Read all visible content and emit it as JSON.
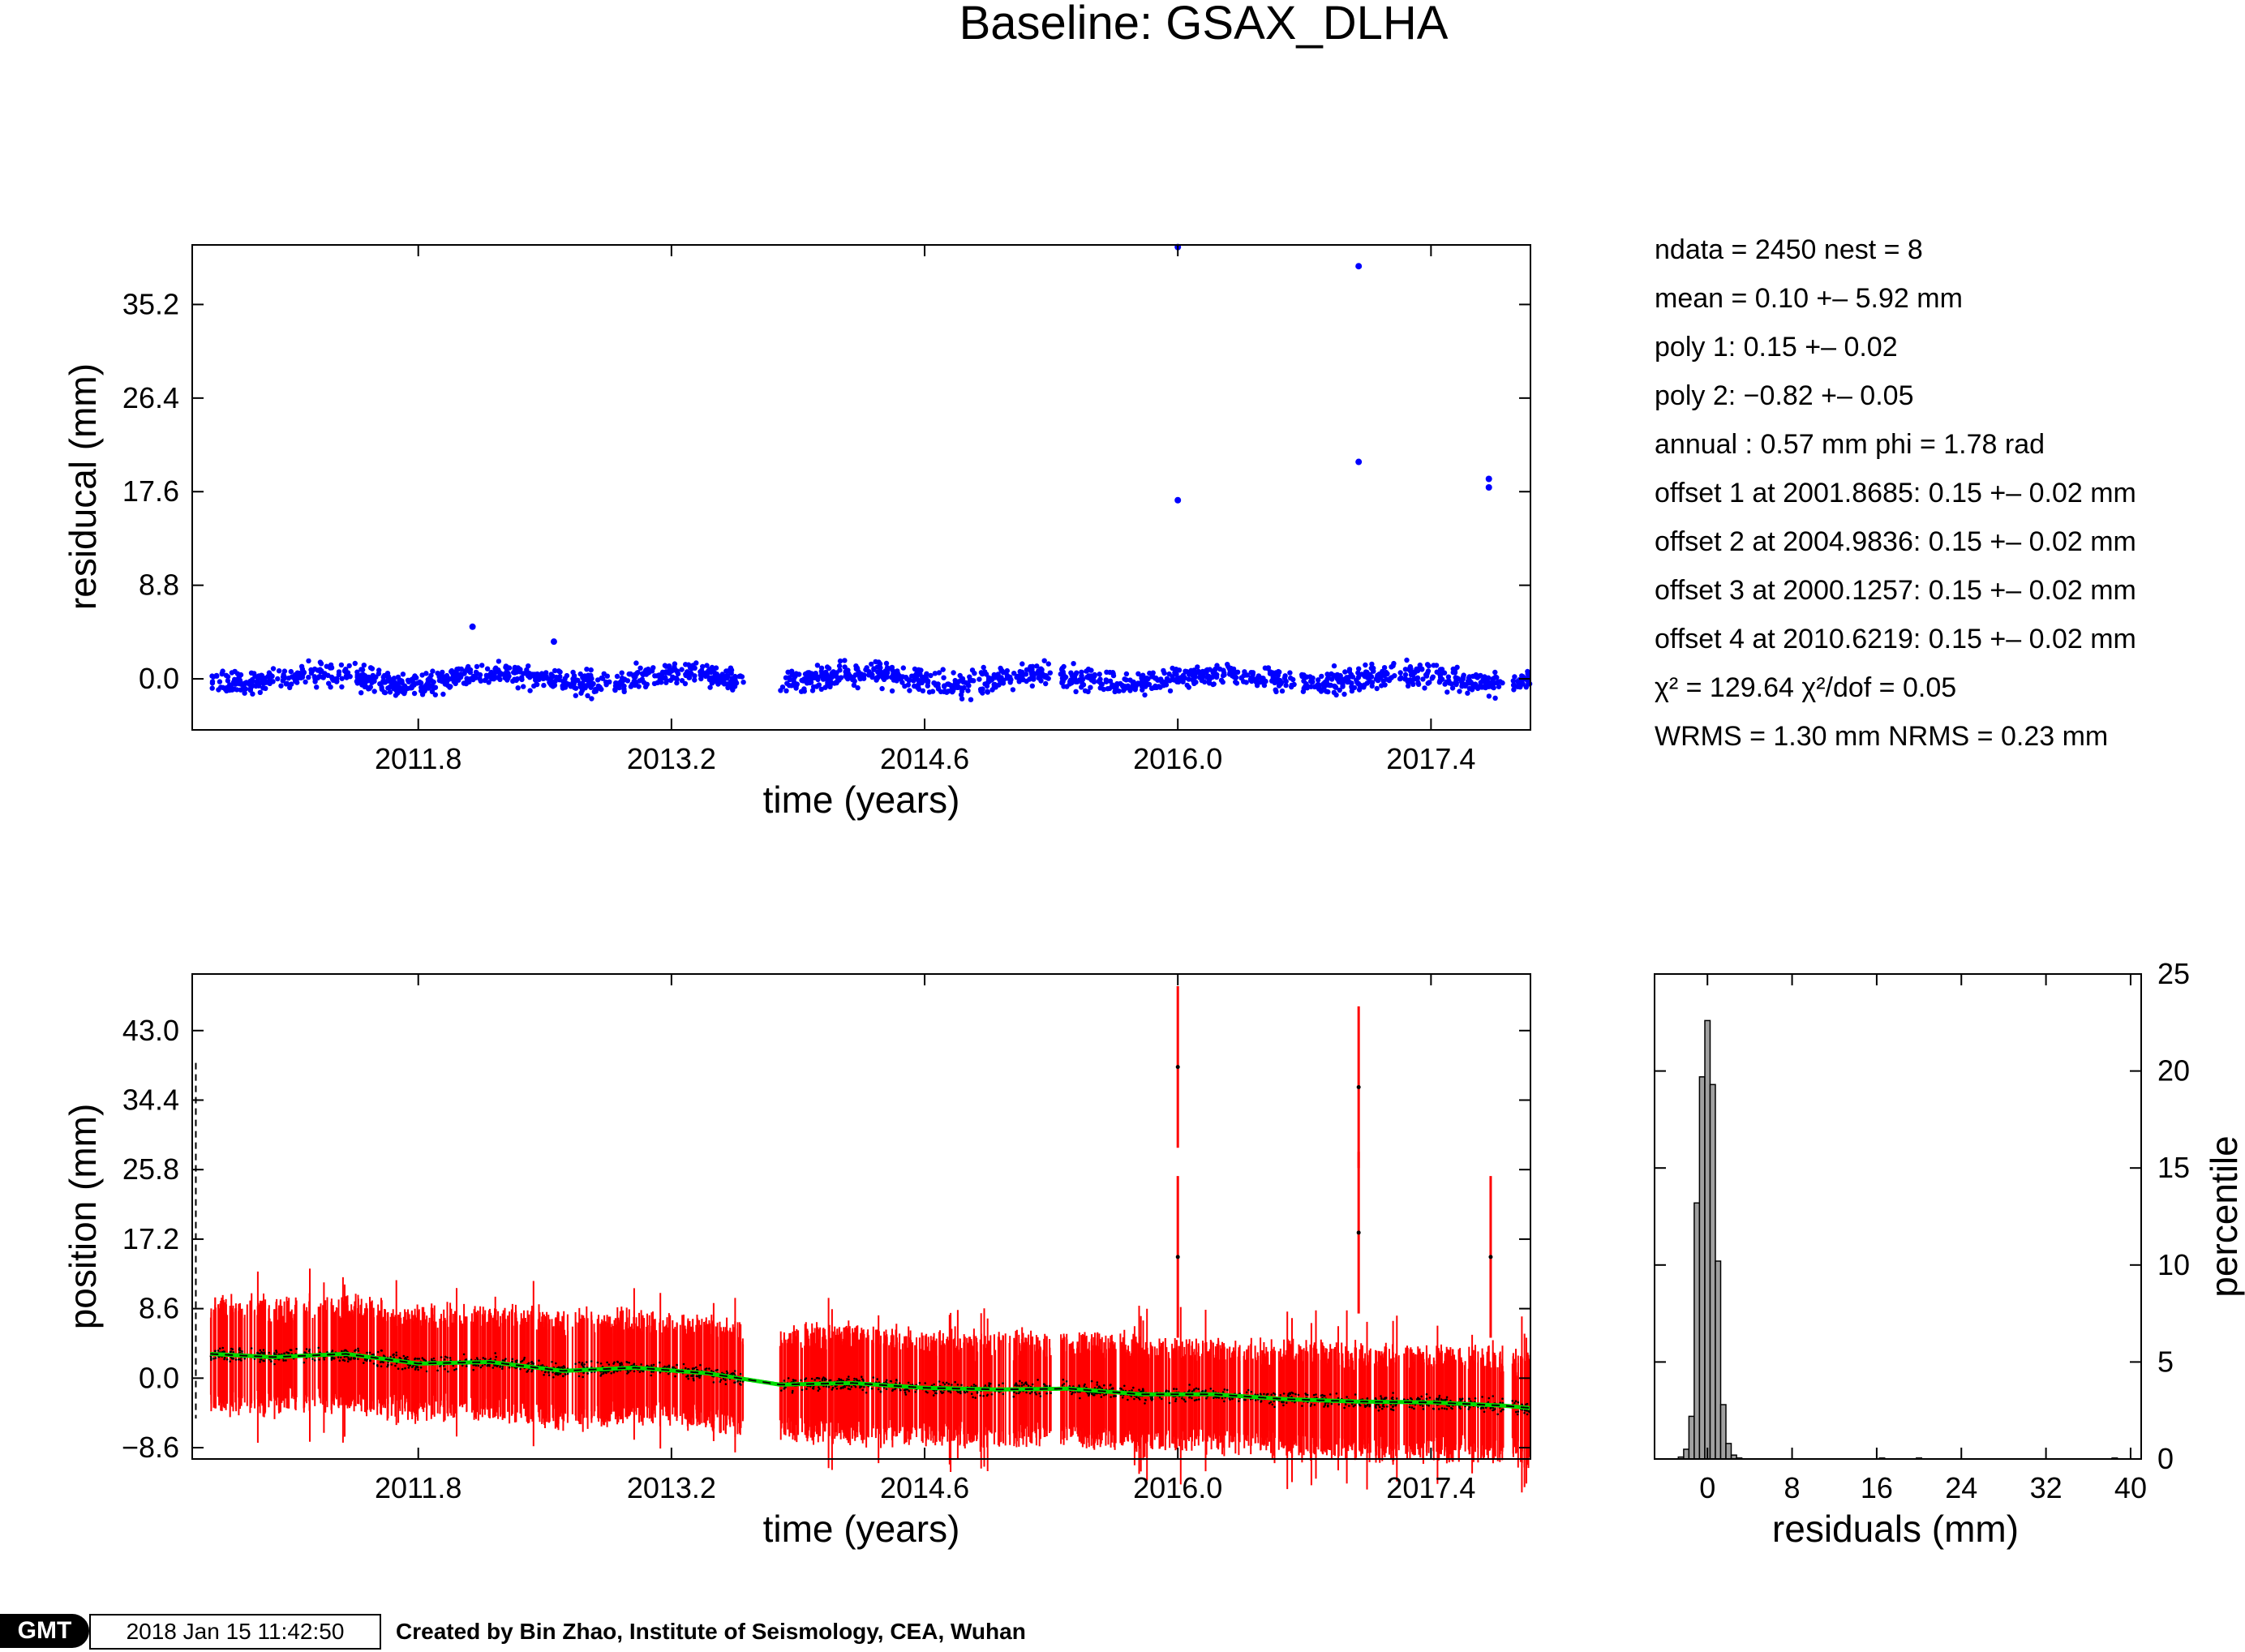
{
  "title": "Baseline: GSAX_DLHA",
  "stats": {
    "ndata": "ndata = 2450  nest = 8",
    "mean": "mean = 0.10 +– 5.92 mm",
    "poly1": "poly 1: 0.15 +– 0.02",
    "poly2": "poly 2: −0.82 +– 0.05",
    "annual": "annual : 0.57 mm  phi = 1.78 rad",
    "offset1": "offset 1 at 2001.8685: 0.15 +– 0.02 mm",
    "offset2": "offset 2 at 2004.9836: 0.15 +– 0.02 mm",
    "offset3": "offset 3 at 2000.1257: 0.15 +– 0.02 mm",
    "offset4": "offset 4 at 2010.6219: 0.15 +– 0.02 mm",
    "chi2": "χ² = 129.64  χ²/dof = 0.05",
    "wrms": "WRMS = 1.30 mm  NRMS = 0.23 mm"
  },
  "footer": {
    "logo": "GMT",
    "timestamp": "2018 Jan 15 11:42:50",
    "credit": "Created by Bin Zhao, Institute of Seismology, CEA, Wuhan"
  },
  "colors": {
    "residual_points": "#0000ff",
    "error_bars": "#ff0000",
    "data_points": "#000000",
    "model_line": "#00dd00",
    "histogram_fill": "#a0a0a0"
  },
  "chart_data": [
    {
      "type": "scatter",
      "name": "residual-panel",
      "xlabel": "time (years)",
      "ylabel": "residucal (mm)",
      "xlim": [
        2010.55,
        2017.95
      ],
      "ylim": [
        -4.8,
        40.8
      ],
      "xticks": [
        "2011.8",
        "2013.2",
        "2014.6",
        "2016.0",
        "2017.4"
      ],
      "yticks": [
        "0.0",
        "8.8",
        "17.6",
        "26.4",
        "35.2"
      ],
      "grid": false,
      "segments": [
        {
          "start": 2010.65,
          "end": 2013.6
        },
        {
          "start": 2013.8,
          "end": 2015.3
        },
        {
          "start": 2015.35,
          "end": 2017.8
        },
        {
          "start": 2017.85,
          "end": 2017.95
        }
      ],
      "outliers": [
        {
          "x": 2016.0,
          "y": 40.6
        },
        {
          "x": 2016.0,
          "y": 16.8
        },
        {
          "x": 2017.0,
          "y": 38.8
        },
        {
          "x": 2017.0,
          "y": 20.4
        },
        {
          "x": 2017.72,
          "y": 18.8
        },
        {
          "x": 2017.72,
          "y": 18.0
        },
        {
          "x": 2012.1,
          "y": 4.9
        },
        {
          "x": 2012.55,
          "y": 3.5
        }
      ]
    },
    {
      "type": "line",
      "name": "position-panel",
      "xlabel": "time (years)",
      "ylabel": "position (mm)",
      "xlim": [
        2010.55,
        2017.95
      ],
      "ylim": [
        -10.0,
        50.0
      ],
      "xticks": [
        "2011.8",
        "2013.2",
        "2014.6",
        "2016.0",
        "2017.4"
      ],
      "yticks": [
        "−8.6",
        "0.0",
        "8.6",
        "17.2",
        "25.8",
        "34.4",
        "43.0"
      ],
      "grid": false,
      "model": {
        "x": [
          2010.65,
          2011.0,
          2011.4,
          2011.8,
          2012.2,
          2012.6,
          2013.0,
          2013.4,
          2013.8,
          2014.2,
          2014.6,
          2015.0,
          2015.4,
          2015.8,
          2016.2,
          2016.6,
          2017.0,
          2017.4,
          2017.8,
          2017.95
        ],
        "y": [
          3.0,
          2.6,
          3.0,
          1.8,
          2.0,
          0.9,
          1.3,
          0.6,
          -0.8,
          -0.6,
          -1.2,
          -1.4,
          -1.3,
          -2.0,
          -2.0,
          -2.6,
          -2.9,
          -3.0,
          -3.4,
          -3.7
        ]
      },
      "outliers": [
        {
          "x": 2016.0,
          "y": 38.5
        },
        {
          "x": 2016.0,
          "y": 15.0
        },
        {
          "x": 2017.0,
          "y": 36.0
        },
        {
          "x": 2017.0,
          "y": 18.0
        },
        {
          "x": 2017.73,
          "y": 15.0
        }
      ],
      "start_marker": {
        "x": 2010.57,
        "ymin": -5.0,
        "ymax": 39.0
      }
    },
    {
      "type": "bar",
      "name": "histogram-panel",
      "xlabel": "residuals (mm)",
      "ylabel": "percentile",
      "xlim": [
        -5.0,
        41.0
      ],
      "ylim": [
        0,
        25
      ],
      "xticks": [
        "0",
        "8",
        "16",
        "24",
        "32",
        "40"
      ],
      "yticks": [
        "0",
        "5",
        "10",
        "15",
        "20",
        "25"
      ],
      "bin_centers": [
        -2.5,
        -2.0,
        -1.5,
        -1.0,
        -0.5,
        0.0,
        0.5,
        1.0,
        1.5,
        2.0,
        2.5,
        3.0,
        16.5,
        20.0,
        38.5
      ],
      "values": [
        0.1,
        0.5,
        2.2,
        13.2,
        19.7,
        22.6,
        19.3,
        10.2,
        2.8,
        0.8,
        0.2,
        0.05,
        0.05,
        0.05,
        0.05
      ]
    }
  ]
}
